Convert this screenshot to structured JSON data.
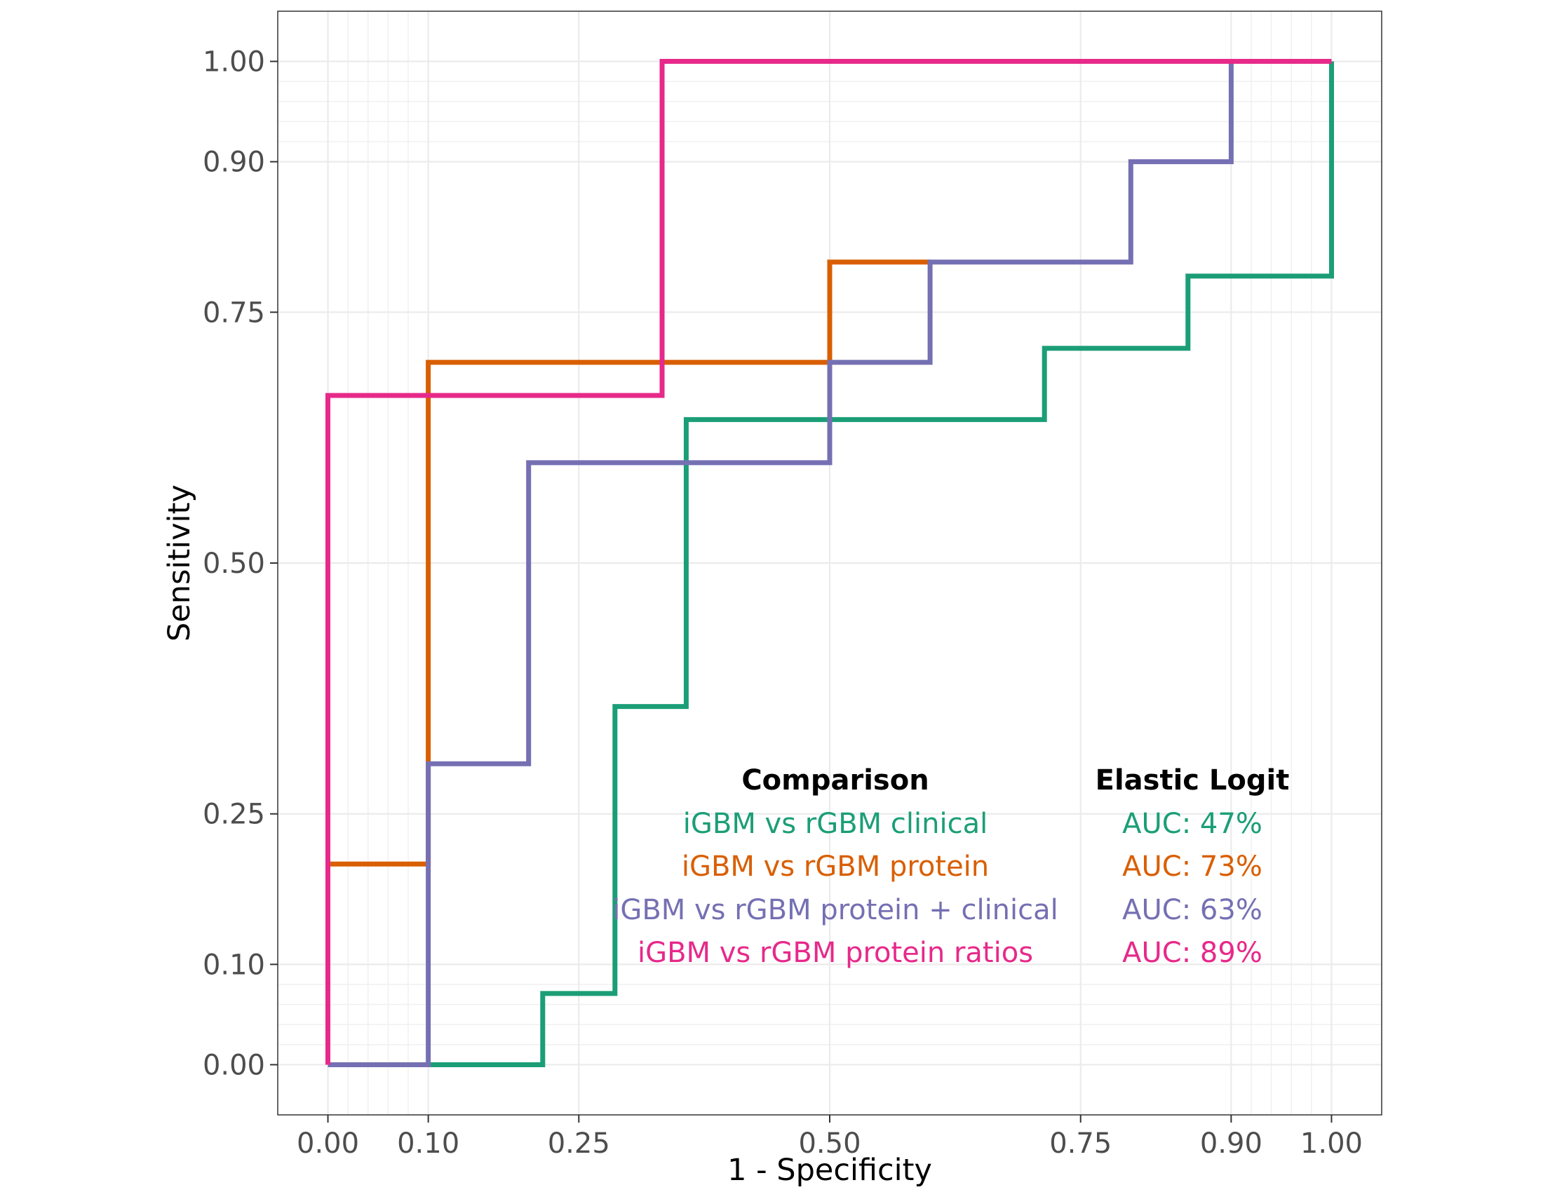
{
  "chart_data": {
    "type": "line",
    "title": "",
    "xlabel": "1 - Specificity",
    "ylabel": "Sensitivity",
    "xlim": [
      -0.05,
      1.05
    ],
    "ylim": [
      -0.05,
      1.05
    ],
    "grid": true,
    "x_ticks": [
      0.0,
      0.1,
      0.25,
      0.5,
      0.75,
      0.9,
      1.0
    ],
    "x_tick_labels": [
      "0.00",
      "0.10",
      "0.25",
      "0.50",
      "0.75",
      "0.90",
      "1.00"
    ],
    "y_ticks": [
      0.0,
      0.1,
      0.25,
      0.5,
      0.75,
      0.9,
      1.0
    ],
    "y_tick_labels": [
      "0.00",
      "0.10",
      "0.25",
      "0.50",
      "0.75",
      "0.90",
      "1.00"
    ],
    "minor_grid_x": [
      0.02,
      0.04,
      0.06,
      0.08,
      0.92,
      0.94,
      0.96,
      0.98
    ],
    "minor_grid_y": [
      0.02,
      0.04,
      0.06,
      0.08,
      0.92,
      0.94,
      0.96,
      0.98
    ],
    "legend_headers": {
      "comparison": "Comparison",
      "model": "Elastic Logit"
    },
    "series": [
      {
        "name": "iGBM vs rGBM clinical",
        "auc_label": "AUC: 47%",
        "color": "#1b9e77",
        "x": [
          0.1,
          0.214,
          0.214,
          0.286,
          0.286,
          0.357,
          0.357,
          0.714,
          0.714,
          0.857,
          0.857,
          1.0,
          1.0
        ],
        "y": [
          0.0,
          0.0,
          0.071,
          0.071,
          0.357,
          0.357,
          0.643,
          0.643,
          0.714,
          0.714,
          0.786,
          0.786,
          1.0
        ]
      },
      {
        "name": "iGBM vs rGBM protein",
        "auc_label": "AUC: 73%",
        "color": "#d95f02",
        "x": [
          0.0,
          0.1,
          0.1,
          0.5,
          0.5,
          0.6
        ],
        "y": [
          0.2,
          0.2,
          0.7,
          0.7,
          0.8,
          0.8
        ]
      },
      {
        "name": "iGBM vs rGBM protein + clinical",
        "auc_label": "AUC: 63%",
        "color": "#7570b3",
        "x": [
          0.0,
          0.1,
          0.1,
          0.2,
          0.2,
          0.5,
          0.5,
          0.6,
          0.6,
          0.8,
          0.8,
          0.9,
          0.9
        ],
        "y": [
          0.0,
          0.0,
          0.3,
          0.3,
          0.6,
          0.6,
          0.7,
          0.7,
          0.8,
          0.8,
          0.9,
          0.9,
          1.0
        ]
      },
      {
        "name": "iGBM vs rGBM protein ratios",
        "auc_label": "AUC: 89%",
        "color": "#e7298a",
        "x": [
          0.0,
          0.0,
          0.333,
          0.333,
          1.0
        ],
        "y": [
          0.0,
          0.667,
          0.667,
          1.0,
          1.0
        ]
      }
    ]
  }
}
